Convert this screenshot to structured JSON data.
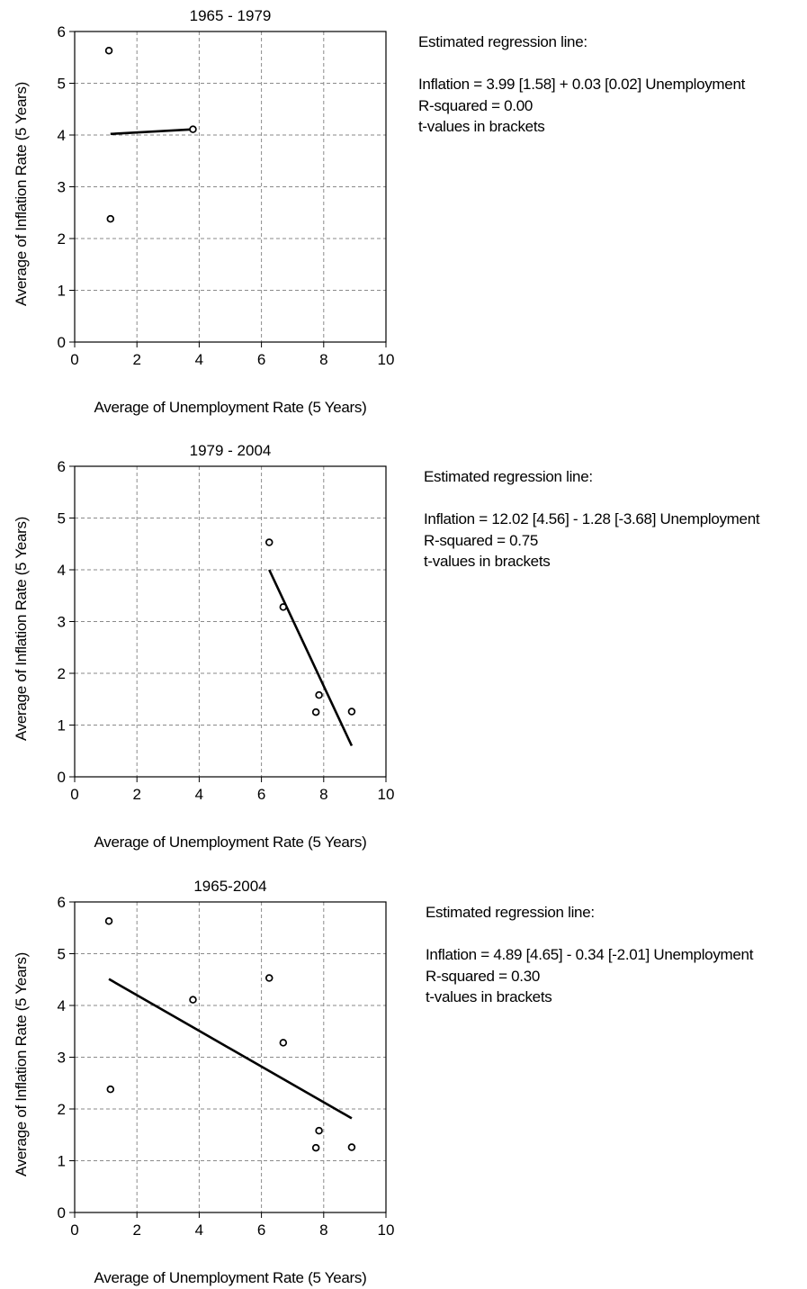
{
  "chart_data": [
    {
      "type": "scatter",
      "title": "1965 - 1979",
      "xlabel": "Average of Unemployment Rate (5 Years)",
      "ylabel": "Average of Inflation Rate (5 Years)",
      "xlim": [
        0,
        10
      ],
      "ylim": [
        0,
        6
      ],
      "xticks": [
        "0",
        "2",
        "4",
        "6",
        "8",
        "10"
      ],
      "yticks": [
        "0",
        "1",
        "2",
        "3",
        "4",
        "5",
        "6"
      ],
      "grid": true,
      "points": [
        {
          "x": 1.1,
          "y": 5.63
        },
        {
          "x": 1.15,
          "y": 2.38
        },
        {
          "x": 3.8,
          "y": 4.11
        }
      ],
      "regression_line": {
        "x": [
          1.15,
          3.8
        ],
        "y": [
          4.02,
          4.11
        ]
      },
      "annotation": [
        "Estimated regression line:",
        "",
        "Inflation = 3.99 [1.58] + 0.03 [0.02] Unemployment",
        "R-squared = 0.00",
        "t-values in brackets"
      ]
    },
    {
      "type": "scatter",
      "title": "1979 - 2004",
      "xlabel": "Average of Unemployment Rate (5 Years)",
      "ylabel": "Average of Inflation Rate (5 Years)",
      "xlim": [
        0,
        10
      ],
      "ylim": [
        0,
        6
      ],
      "xticks": [
        "0",
        "2",
        "4",
        "6",
        "8",
        "10"
      ],
      "yticks": [
        "0",
        "1",
        "2",
        "3",
        "4",
        "5",
        "6"
      ],
      "grid": true,
      "points": [
        {
          "x": 6.25,
          "y": 4.53
        },
        {
          "x": 6.7,
          "y": 3.28
        },
        {
          "x": 7.85,
          "y": 1.58
        },
        {
          "x": 7.75,
          "y": 1.25
        },
        {
          "x": 8.9,
          "y": 1.26
        }
      ],
      "regression_line": {
        "x": [
          6.25,
          8.9
        ],
        "y": [
          4.0,
          0.6
        ]
      },
      "annotation": [
        "Estimated regression line:",
        "",
        "Inflation = 12.02 [4.56] - 1.28 [-3.68] Unemployment",
        "R-squared = 0.75",
        "t-values in brackets"
      ]
    },
    {
      "type": "scatter",
      "title": "1965-2004",
      "xlabel": "Average of Unemployment Rate (5 Years)",
      "ylabel": "Average of Inflation Rate (5 Years)",
      "xlim": [
        0,
        10
      ],
      "ylim": [
        0,
        6
      ],
      "xticks": [
        "0",
        "2",
        "4",
        "6",
        "8",
        "10"
      ],
      "yticks": [
        "0",
        "1",
        "2",
        "3",
        "4",
        "5",
        "6"
      ],
      "grid": true,
      "points": [
        {
          "x": 1.1,
          "y": 5.63
        },
        {
          "x": 1.15,
          "y": 2.38
        },
        {
          "x": 3.8,
          "y": 4.11
        },
        {
          "x": 6.25,
          "y": 4.53
        },
        {
          "x": 6.7,
          "y": 3.28
        },
        {
          "x": 7.85,
          "y": 1.58
        },
        {
          "x": 7.75,
          "y": 1.25
        },
        {
          "x": 8.9,
          "y": 1.26
        }
      ],
      "regression_line": {
        "x": [
          1.1,
          8.9
        ],
        "y": [
          4.51,
          1.82
        ]
      },
      "annotation": [
        "Estimated regression line:",
        "",
        "Inflation = 4.89 [4.65] - 0.34 [-2.01] Unemployment",
        "R-squared = 0.30",
        "t-values in brackets"
      ]
    }
  ]
}
